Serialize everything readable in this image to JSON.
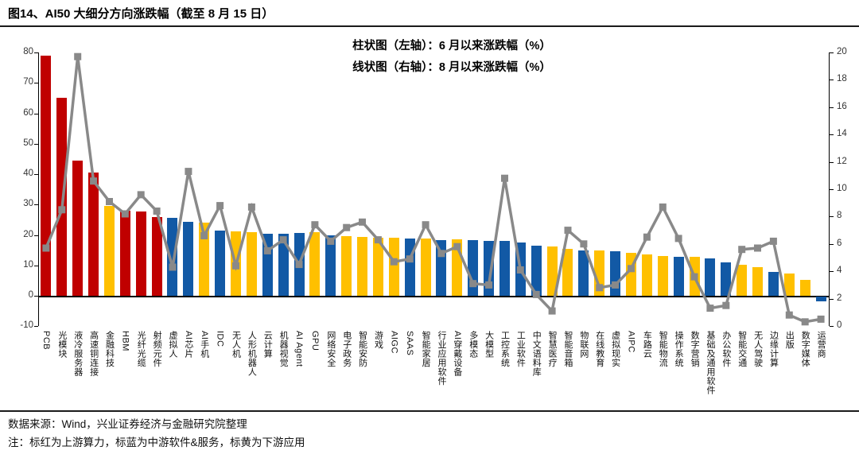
{
  "header": {
    "title": "图14、AI50 大细分方向涨跌幅（截至 8 月 15 日）"
  },
  "legend": {
    "bar_label": "柱状图（左轴）：6 月以来涨跌幅（%）",
    "line_label": "线状图（右轴）：8 月以来涨跌幅（%）"
  },
  "footer": {
    "source": "数据来源：Wind，兴业证券经济与金融研究院整理",
    "note": "注：标红为上游算力，标蓝为中游软件&服务，标黄为下游应用"
  },
  "colors": {
    "upstream_red": "#C00000",
    "midstream_blue": "#1259A5",
    "downstream_yellow": "#FFC000",
    "line_gray": "#898989"
  },
  "chart_data": {
    "type": "bar+line combo",
    "grid": false,
    "legend_position": "top-center",
    "categories": [
      "PCB",
      "光模块",
      "液冷服务器",
      "高速铜连接",
      "金融科技",
      "HBM",
      "光纤光缆",
      "射频元件",
      "虚拟人",
      "AI芯片",
      "AI手机",
      "IDC",
      "无人机",
      "人形机器人",
      "云计算",
      "机器视觉",
      "AI Agent",
      "GPU",
      "网络安全",
      "电子政务",
      "智能安防",
      "游戏",
      "AIGC",
      "SAAS",
      "智能家居",
      "行业应用软件",
      "AI穿戴设备",
      "多模态",
      "大模型",
      "工控系统",
      "工业软件",
      "中文语料库",
      "智慧医疗",
      "智能音箱",
      "物联网",
      "在线教育",
      "虚拟现实",
      "AIPC",
      "车路云",
      "智能物流",
      "操作系统",
      "数字营销",
      "基础及通用软件",
      "办公软件",
      "智能交通",
      "无人驾驶",
      "边缘计算",
      "出版",
      "数字媒体",
      "运营商"
    ],
    "groups": [
      "up",
      "up",
      "up",
      "up",
      "down",
      "up",
      "up",
      "up",
      "mid",
      "mid",
      "down",
      "mid",
      "down",
      "down",
      "mid",
      "mid",
      "mid",
      "down",
      "mid",
      "down",
      "down",
      "down",
      "down",
      "mid",
      "down",
      "mid",
      "down",
      "mid",
      "mid",
      "mid",
      "mid",
      "mid",
      "down",
      "down",
      "mid",
      "down",
      "mid",
      "down",
      "down",
      "down",
      "mid",
      "down",
      "mid",
      "mid",
      "down",
      "down",
      "mid",
      "down",
      "down",
      "mid"
    ],
    "group_legend": {
      "up": "上游算力(红)",
      "mid": "中游软件&服务(蓝)",
      "down": "下游应用(黄)"
    },
    "series": [
      {
        "name": "6月以来涨跌幅(%)",
        "type": "bar",
        "axis": "left",
        "values": [
          79,
          65,
          44.5,
          40.5,
          29.5,
          28,
          27.8,
          26,
          25.5,
          24.2,
          24,
          21.4,
          21.2,
          20.8,
          20.4,
          20.5,
          20.6,
          21,
          19.8,
          19.6,
          19.4,
          19,
          19,
          18.8,
          18.8,
          18.4,
          18.6,
          18.4,
          18.1,
          18.1,
          17.5,
          16.4,
          16.2,
          15.3,
          14.9,
          14.9,
          14.6,
          14,
          13.7,
          13.1,
          12.7,
          12.7,
          12.4,
          11.1,
          10.3,
          9.4,
          7.9,
          7.4,
          5.2,
          -1.5
        ]
      },
      {
        "name": "8月以来涨跌幅(%)",
        "type": "line",
        "axis": "right",
        "values": [
          5.7,
          8.5,
          19.7,
          10.6,
          9.1,
          8.2,
          9.6,
          8.4,
          4.3,
          11.3,
          6.6,
          8.8,
          4.4,
          8.7,
          5.5,
          6.3,
          4.5,
          7.4,
          6.2,
          7.2,
          7.6,
          6.3,
          4.7,
          4.9,
          7.4,
          5.3,
          5.8,
          3.1,
          3,
          10.8,
          4.1,
          2.3,
          1.1,
          7,
          6,
          2.8,
          3,
          4.2,
          6.5,
          8.7,
          6.4,
          3.6,
          1.3,
          1.5,
          5.6,
          5.7,
          6.2,
          0.8,
          0.3,
          0.5
        ]
      }
    ],
    "left_axis": {
      "range": [
        -10,
        80
      ],
      "ticks": [
        80,
        70,
        60,
        50,
        40,
        30,
        20,
        10,
        0,
        -10
      ]
    },
    "right_axis": {
      "range": [
        0,
        20
      ],
      "ticks": [
        20,
        18,
        16,
        14,
        12,
        10,
        8,
        6,
        4,
        2,
        0
      ]
    }
  }
}
